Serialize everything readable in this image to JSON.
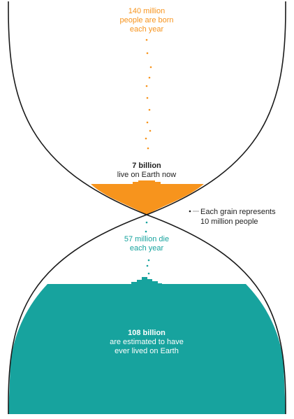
{
  "colors": {
    "orange": "#F7941D",
    "teal": "#17A39E",
    "outline": "#1a1a1a",
    "text_dark": "#222222"
  },
  "births": {
    "line1": "140 million",
    "line2": "people are born",
    "line3": "each year"
  },
  "living": {
    "value": "7 billion",
    "caption": "live on Earth now"
  },
  "legend": {
    "line1": "Each grain represents",
    "line2": "10 million people"
  },
  "deaths": {
    "line1": "57 million die",
    "line2": "each year"
  },
  "ever_lived": {
    "value": "108 billion",
    "line1": "are estimated to have",
    "line2": "ever lived on Earth"
  }
}
